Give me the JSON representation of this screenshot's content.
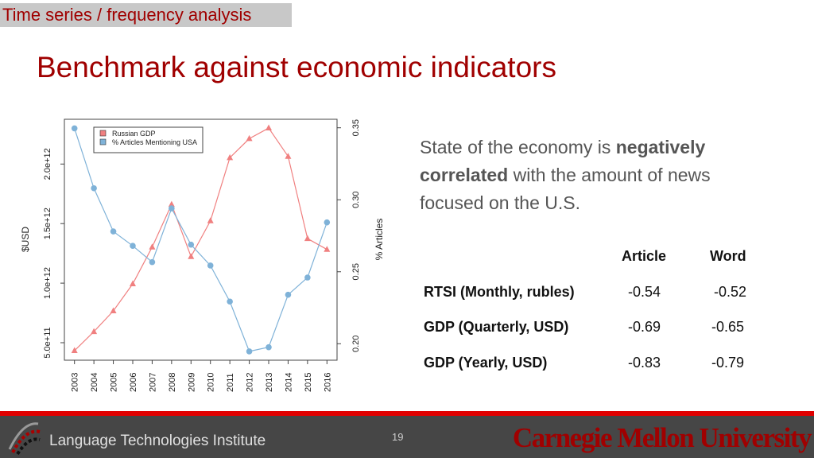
{
  "header": {
    "section": "Time series / frequency analysis",
    "title": "Benchmark against economic indicators"
  },
  "description": {
    "part1": "State of the economy is ",
    "bold1": "negatively",
    "bold2": "correlated",
    "part2": " with the amount of news focused on the U.S."
  },
  "table": {
    "columns": [
      "Article",
      "Word"
    ],
    "rows": [
      {
        "label": "RTSI (Monthly, rubles)",
        "article": "-0.54",
        "word": "-0.52"
      },
      {
        "label": "GDP (Quarterly, USD)",
        "article": "-0.69",
        "word": "-0.65"
      },
      {
        "label": "GDP (Yearly, USD)",
        "article": "-0.83",
        "word": "-0.79"
      }
    ]
  },
  "footer": {
    "institute": "Language Technologies Institute",
    "page": "19",
    "university": "Carnegie Mellon University"
  },
  "chart_data": {
    "type": "line",
    "x": [
      2003,
      2004,
      2005,
      2006,
      2007,
      2008,
      2009,
      2010,
      2011,
      2012,
      2013,
      2014,
      2015,
      2016
    ],
    "ylabel": "$USD",
    "y2label": "% Articles",
    "ylim": [
      350000000000.0,
      2450000000000.0
    ],
    "y2lim": [
      0.19,
      0.355
    ],
    "yticks": [
      "5.0e+11",
      "1.0e+12",
      "1.5e+12",
      "2.0e+12"
    ],
    "ytick_values": [
      500000000000.0,
      1000000000000.0,
      1500000000000.0,
      2000000000000.0
    ],
    "y2ticks": [
      "0.20",
      "0.25",
      "0.30",
      "0.35"
    ],
    "y2tick_values": [
      0.2,
      0.25,
      0.3,
      0.35
    ],
    "legend_position": "top-left",
    "grid": false,
    "series": [
      {
        "name": "Russian GDP",
        "axis": "left",
        "marker": "triangle",
        "color": "#f08080",
        "values": [
          433000000000.0,
          593000000000.0,
          767000000000.0,
          994000000000.0,
          1303000000000.0,
          1661000000000.0,
          1223000000000.0,
          1523000000000.0,
          2053000000000.0,
          2213000000000.0,
          2302000000000.0,
          2064000000000.0,
          1374000000000.0,
          1283000000000.0
        ]
      },
      {
        "name": "% Articles Mentioning USA",
        "axis": "right",
        "marker": "circle",
        "color": "#7fb2d8",
        "values": [
          0.3496,
          0.308,
          0.278,
          0.268,
          0.2567,
          0.294,
          0.2688,
          0.2543,
          0.2293,
          0.1947,
          0.1976,
          0.234,
          0.246,
          0.2843
        ]
      }
    ]
  }
}
